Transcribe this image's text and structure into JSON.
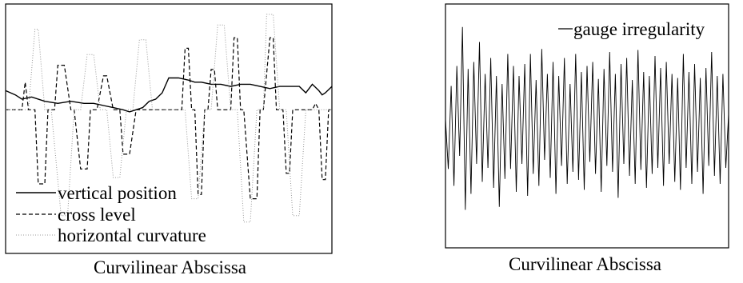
{
  "chart_data": [
    {
      "type": "line",
      "xlabel": "Curvilinear Abscissa",
      "ylabel": "",
      "x_range": [
        0,
        100
      ],
      "y_range": [
        0,
        100
      ],
      "axes_ticks": false,
      "grid": false,
      "legend_position": "bottom-left",
      "series": [
        {
          "name": "vertical position",
          "style": "solid",
          "color": "#000000",
          "x": [
            0,
            3,
            5,
            8,
            12,
            16,
            20,
            24,
            27,
            30,
            33,
            36,
            38,
            40,
            42,
            44,
            46,
            48,
            50,
            53,
            56,
            58,
            60,
            63,
            66,
            69,
            72,
            75,
            78,
            81,
            84,
            87,
            90,
            92,
            94,
            96,
            97,
            98,
            100
          ],
          "y": [
            64,
            62,
            60,
            61,
            59,
            58,
            59,
            58,
            58,
            57,
            56,
            55,
            54,
            55,
            56,
            59,
            60,
            63,
            70,
            70,
            69,
            68,
            68,
            67,
            67,
            66,
            67,
            67,
            66,
            65,
            66,
            66,
            66,
            63,
            67,
            64,
            62,
            63,
            66
          ]
        },
        {
          "name": "cross level",
          "style": "dashed",
          "color": "#000000",
          "x": [
            0,
            5,
            6,
            7,
            9,
            10,
            12,
            13,
            15,
            16,
            18,
            20,
            21,
            23,
            25,
            26,
            28,
            30,
            31,
            33,
            35,
            36,
            38,
            40,
            43,
            45,
            46,
            47,
            48,
            49,
            54,
            55,
            56,
            57,
            58,
            59,
            60,
            61,
            62,
            63,
            64,
            65,
            69,
            70,
            71,
            72,
            73,
            75,
            77,
            78,
            79,
            81,
            82,
            83,
            85,
            86,
            87,
            88,
            89,
            90,
            94,
            95,
            96,
            97,
            98,
            99,
            100
          ],
          "y": [
            55,
            55,
            68,
            55,
            55,
            20,
            20,
            55,
            55,
            76,
            76,
            55,
            55,
            27,
            27,
            55,
            55,
            71,
            71,
            55,
            55,
            34,
            34,
            55,
            55,
            55,
            55,
            55,
            55,
            55,
            55,
            84,
            84,
            55,
            55,
            15,
            15,
            55,
            55,
            74,
            74,
            55,
            55,
            89,
            89,
            55,
            55,
            13,
            13,
            55,
            55,
            89,
            89,
            55,
            55,
            25,
            25,
            55,
            55,
            55,
            55,
            58,
            55,
            22,
            22,
            55,
            55
          ]
        },
        {
          "name": "horizontal curvature",
          "style": "dotted",
          "color": "#999999",
          "x": [
            0,
            5,
            7,
            9,
            10,
            12,
            14,
            17,
            19,
            21,
            23,
            25,
            27,
            29,
            31,
            33,
            35,
            37,
            39,
            41,
            43,
            45,
            47,
            48,
            49,
            54,
            55,
            57,
            59,
            61,
            63,
            65,
            67,
            69,
            71,
            73,
            75,
            77,
            79,
            80,
            82,
            84,
            86,
            88,
            90,
            92,
            94,
            97,
            100
          ],
          "y": [
            55,
            55,
            55,
            93,
            93,
            55,
            55,
            5,
            5,
            55,
            55,
            81,
            81,
            55,
            55,
            23,
            23,
            55,
            55,
            88,
            88,
            55,
            55,
            55,
            55,
            55,
            55,
            13,
            13,
            55,
            55,
            95,
            95,
            55,
            55,
            2,
            2,
            55,
            55,
            100,
            100,
            55,
            55,
            5,
            5,
            55,
            55,
            55,
            55
          ]
        }
      ]
    },
    {
      "type": "line",
      "xlabel": "Curvilinear Abscissa",
      "ylabel": "",
      "x_range": [
        0,
        100
      ],
      "y_range": [
        -1,
        1
      ],
      "axes_ticks": false,
      "grid": false,
      "legend_position": "top-right",
      "series": [
        {
          "name": "gauge irregularity",
          "style": "solid",
          "color": "#000000",
          "x": [
            0,
            1,
            2,
            3,
            4,
            5,
            6,
            7,
            8,
            9,
            10,
            11,
            12,
            13,
            14,
            15,
            16,
            17,
            18,
            19,
            20,
            21,
            22,
            23,
            24,
            25,
            26,
            27,
            28,
            29,
            30,
            31,
            32,
            33,
            34,
            35,
            36,
            37,
            38,
            39,
            40,
            41,
            42,
            43,
            44,
            45,
            46,
            47,
            48,
            49,
            50,
            51,
            52,
            53,
            54,
            55,
            56,
            57,
            58,
            59,
            60,
            61,
            62,
            63,
            64,
            65,
            66,
            67,
            68,
            69,
            70,
            71,
            72,
            73,
            74,
            75,
            76,
            77,
            78,
            79,
            80,
            81,
            82,
            83,
            84,
            85,
            86,
            87,
            88,
            89,
            90,
            91,
            92,
            93,
            94,
            95,
            96,
            97,
            98,
            99,
            100
          ],
          "y": [
            0.05,
            -0.45,
            0.38,
            -0.62,
            0.58,
            -0.32,
            0.97,
            -0.86,
            0.55,
            -0.7,
            0.62,
            -0.4,
            0.82,
            -0.58,
            0.5,
            -0.44,
            0.66,
            -0.64,
            0.48,
            -0.83,
            0.4,
            -0.55,
            0.7,
            -0.45,
            0.58,
            -0.68,
            0.48,
            -0.4,
            0.6,
            -0.72,
            0.7,
            -0.5,
            0.44,
            -0.62,
            0.75,
            -0.36,
            0.5,
            -0.54,
            0.62,
            -0.7,
            0.48,
            -0.42,
            0.66,
            -0.6,
            0.4,
            -0.48,
            0.7,
            -0.56,
            0.52,
            -0.66,
            0.58,
            -0.38,
            0.62,
            -0.5,
            0.45,
            -0.68,
            0.55,
            -0.42,
            0.72,
            -0.48,
            0.5,
            -0.74,
            0.6,
            -0.4,
            0.66,
            -0.52,
            0.44,
            -0.6,
            0.74,
            -0.46,
            0.52,
            -0.64,
            0.48,
            -0.5,
            0.68,
            -0.44,
            0.56,
            -0.62,
            0.62,
            -0.4,
            0.5,
            -0.58,
            0.46,
            -0.66,
            0.7,
            -0.44,
            0.52,
            -0.6,
            0.6,
            -0.48,
            0.46,
            -0.7,
            0.56,
            -0.42,
            0.72,
            -0.52,
            0.48,
            -0.6,
            0.5,
            -0.44,
            0.1
          ]
        }
      ]
    }
  ]
}
